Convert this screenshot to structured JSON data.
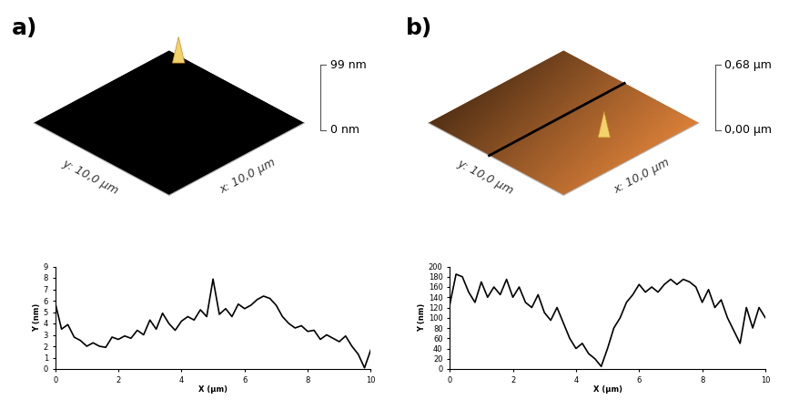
{
  "chart_data": [
    {
      "type": "surface",
      "title": "a)",
      "x_label": "x: 10,0 µm",
      "y_label": "y: 10,0 µm",
      "xlim": [
        0,
        10
      ],
      "ylim": [
        0,
        10
      ],
      "zlim": [
        0,
        99
      ],
      "zticks": [
        {
          "value": 0,
          "label": "0 nm"
        },
        {
          "value": 99,
          "label": "99 nm"
        }
      ],
      "color": "#000000"
    },
    {
      "type": "surface",
      "title": "b)",
      "x_label": "x: 10,0 µm",
      "y_label": "y: 10,0 µm",
      "xlim": [
        0,
        10
      ],
      "ylim": [
        0,
        10
      ],
      "zlim": [
        0,
        0.68
      ],
      "zticks": [
        {
          "value": 0,
          "label": "0,00 µm"
        },
        {
          "value": 0.68,
          "label": "0,68 µm"
        }
      ],
      "color": "#9a5a28",
      "profile_x": 4.5
    },
    {
      "type": "line",
      "x_label": "X (µm)",
      "y_label": "Y (nm)",
      "x": [
        0,
        0.2,
        0.4,
        0.6,
        0.8,
        1,
        1.2,
        1.4,
        1.6,
        1.8,
        2,
        2.2,
        2.4,
        2.6,
        2.8,
        3,
        3.2,
        3.4,
        3.6,
        3.8,
        4,
        4.2,
        4.4,
        4.6,
        4.8,
        5,
        5.2,
        5.4,
        5.6,
        5.8,
        6,
        6.2,
        6.4,
        6.6,
        6.8,
        7,
        7.2,
        7.4,
        7.6,
        7.8,
        8,
        8.2,
        8.4,
        8.6,
        8.8,
        9,
        9.2,
        9.4,
        9.6,
        9.8,
        10
      ],
      "values": [
        5.8,
        3.5,
        3.9,
        2.8,
        2.5,
        2.0,
        2.3,
        2.0,
        1.9,
        2.8,
        2.6,
        2.9,
        2.7,
        3.4,
        3.0,
        4.3,
        3.5,
        4.9,
        4.0,
        3.4,
        4.2,
        4.6,
        4.3,
        5.2,
        4.6,
        7.9,
        4.8,
        5.3,
        4.6,
        5.7,
        5.3,
        5.6,
        6.1,
        6.4,
        6.2,
        5.6,
        4.6,
        4.0,
        3.6,
        3.8,
        3.3,
        3.4,
        2.6,
        3.0,
        2.7,
        2.4,
        2.9,
        2.0,
        1.3,
        0.1,
        1.7
      ],
      "color": "#000000",
      "xlim": [
        0,
        10
      ],
      "xticks": [
        0,
        2,
        4,
        6,
        8,
        10
      ],
      "ylim": [
        0,
        9
      ],
      "yticks": [
        0,
        1,
        2,
        3,
        4,
        5,
        6,
        7,
        8,
        9
      ]
    },
    {
      "type": "line",
      "x_label": "X (µm)",
      "y_label": "Y (nm)",
      "x": [
        0,
        0.2,
        0.4,
        0.6,
        0.8,
        1,
        1.2,
        1.4,
        1.6,
        1.8,
        2,
        2.2,
        2.4,
        2.6,
        2.8,
        3,
        3.2,
        3.4,
        3.6,
        3.8,
        4,
        4.2,
        4.4,
        4.6,
        4.8,
        5,
        5.2,
        5.4,
        5.6,
        5.8,
        6,
        6.2,
        6.4,
        6.6,
        6.8,
        7,
        7.2,
        7.4,
        7.6,
        7.8,
        8,
        8.2,
        8.4,
        8.6,
        8.8,
        9,
        9.2,
        9.4,
        9.6,
        9.8,
        10
      ],
      "values": [
        125,
        185,
        180,
        150,
        130,
        170,
        140,
        160,
        145,
        175,
        140,
        160,
        130,
        120,
        145,
        110,
        95,
        120,
        90,
        60,
        40,
        50,
        30,
        20,
        5,
        40,
        80,
        100,
        130,
        145,
        165,
        150,
        160,
        150,
        165,
        175,
        165,
        175,
        170,
        160,
        130,
        155,
        120,
        135,
        100,
        75,
        50,
        120,
        80,
        120,
        100
      ],
      "color": "#000000",
      "xlim": [
        0,
        10
      ],
      "xticks": [
        0,
        2,
        4,
        6,
        8,
        10
      ],
      "ylim": [
        0,
        200
      ],
      "yticks": [
        0,
        20,
        40,
        60,
        80,
        100,
        120,
        140,
        160,
        180,
        200
      ]
    }
  ]
}
